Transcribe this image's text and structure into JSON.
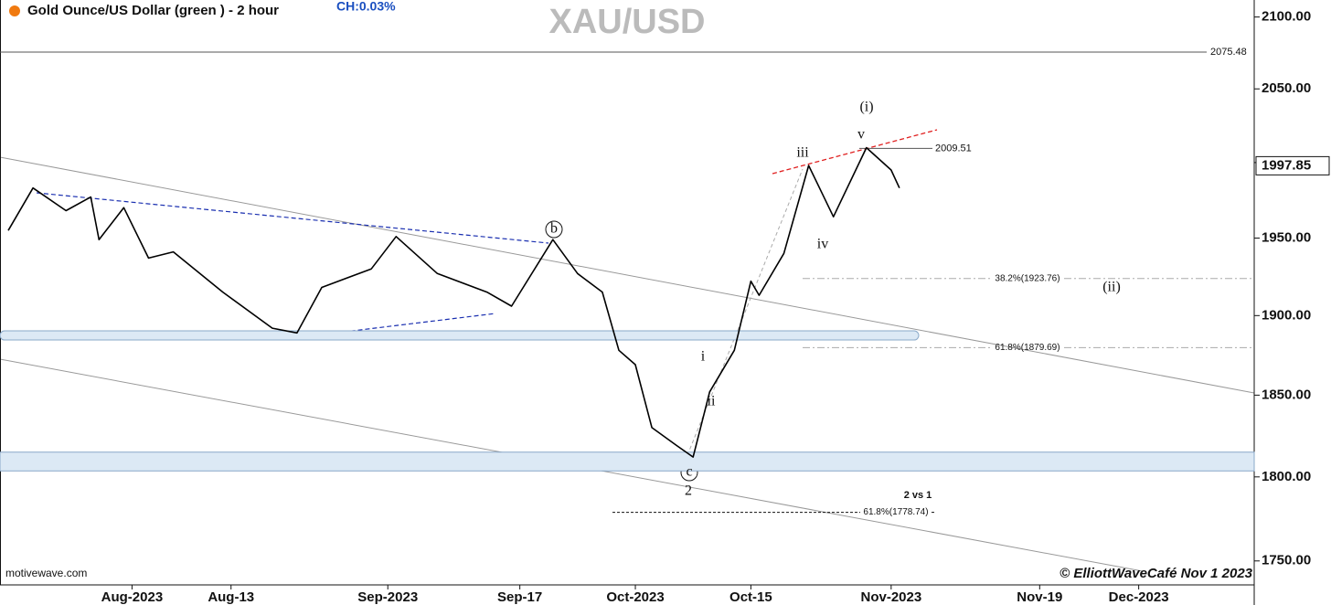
{
  "chart_data": {
    "type": "line",
    "title": "XAU/USD",
    "instrument": "Gold Ounce/US Dollar (green ) - 2 hour",
    "change": "CH:0.03%",
    "source": "motivewave.com",
    "credit": "© ElliottWaveCafé Nov 1 2023",
    "log_scale": true,
    "grid": false,
    "xlim": [
      "2023-07-16",
      "2023-12-15"
    ],
    "ylim": [
      1736,
      2112
    ],
    "xticks": [
      {
        "value": "2023-08-01",
        "label": "Aug-2023"
      },
      {
        "value": "2023-08-13",
        "label": "Aug-13"
      },
      {
        "value": "2023-09-01",
        "label": "Sep-2023"
      },
      {
        "value": "2023-09-17",
        "label": "Sep-17"
      },
      {
        "value": "2023-10-01",
        "label": "Oct-2023"
      },
      {
        "value": "2023-10-15",
        "label": "Oct-15"
      },
      {
        "value": "2023-11-01",
        "label": "Nov-2023"
      },
      {
        "value": "2023-11-19",
        "label": "Nov-19"
      },
      {
        "value": "2023-12-01",
        "label": "Dec-2023"
      }
    ],
    "yticks": [
      {
        "value": 1750,
        "label": "1750.00"
      },
      {
        "value": 1800,
        "label": "1800.00"
      },
      {
        "value": 1850,
        "label": "1850.00"
      },
      {
        "value": 1900,
        "label": "1900.00"
      },
      {
        "value": 1950,
        "label": "1950.00"
      },
      {
        "value": 2000,
        "label": "2000.00"
      },
      {
        "value": 2050,
        "label": "2050.00"
      },
      {
        "value": 2100,
        "label": "2100.00"
      }
    ],
    "series": [
      {
        "name": "Gold Ounce/US Dollar",
        "color": "#000000",
        "x": [
          "2023-07-17",
          "2023-07-20",
          "2023-07-24",
          "2023-07-27",
          "2023-07-28",
          "2023-07-31",
          "2023-08-03",
          "2023-08-06",
          "2023-08-12",
          "2023-08-18",
          "2023-08-21",
          "2023-08-24",
          "2023-08-30",
          "2023-09-02",
          "2023-09-07",
          "2023-09-13",
          "2023-09-16",
          "2023-09-21",
          "2023-09-24",
          "2023-09-27",
          "2023-09-29",
          "2023-10-01",
          "2023-10-03",
          "2023-10-06",
          "2023-10-08",
          "2023-10-10",
          "2023-10-13",
          "2023-10-15",
          "2023-10-16",
          "2023-10-19",
          "2023-10-22",
          "2023-10-25",
          "2023-10-29",
          "2023-11-01",
          "2023-11-02"
        ],
        "values": [
          1955,
          1983,
          1968,
          1977,
          1949,
          1970,
          1937,
          1941,
          1915,
          1892,
          1889,
          1918,
          1930,
          1951,
          1927,
          1915,
          1906,
          1949,
          1927,
          1915,
          1878,
          1869,
          1830,
          1819,
          1812,
          1852,
          1878,
          1922,
          1913,
          1940,
          1998,
          1964,
          2010,
          1995,
          1983
        ]
      }
    ],
    "current_price": 1997.85,
    "levels": [
      {
        "value": 2075.48,
        "label": "2075.48"
      },
      {
        "value": 2009.51,
        "label": "2009.51"
      },
      {
        "value": 1923.76,
        "label": "38.2%(1923.76)"
      },
      {
        "value": 1879.69,
        "label": "61.8%(1879.69)"
      },
      {
        "value": 1778.74,
        "label": "61.8%(1778.74)"
      }
    ],
    "zones": [
      [
        1884.5,
        1890.3
      ],
      [
        1803.6,
        1815.0
      ]
    ],
    "annotations": [
      "(i)",
      "iii",
      "v",
      "iv",
      "(ii)",
      "i",
      "ii",
      "b",
      "c",
      "2",
      "2 vs 1"
    ]
  }
}
